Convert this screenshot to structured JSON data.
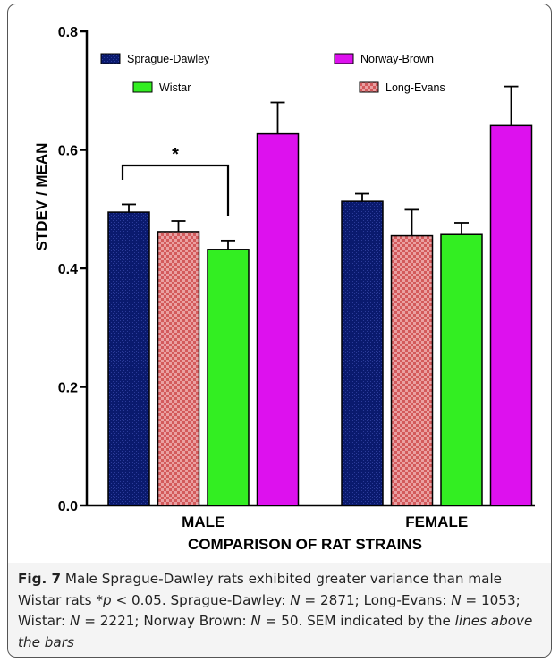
{
  "chart_data": {
    "type": "bar",
    "categories": [
      "MALE",
      "FEMALE"
    ],
    "xlabel": "COMPARISON OF RAT STRAINS",
    "ylabel": "STDEV / MEAN",
    "ylim": [
      0,
      0.8
    ],
    "yticks": [
      "0.0",
      "0.2",
      "0.4",
      "0.6",
      "0.8"
    ],
    "legend_placement": "top",
    "series": [
      {
        "name": "Sprague-Dawley",
        "values": [
          0.495,
          0.513
        ],
        "sem": [
          0.013,
          0.013
        ],
        "color": "#0a1a6e",
        "pattern": "dots-dark"
      },
      {
        "name": "Long-Evans",
        "values": [
          0.462,
          0.455
        ],
        "sem": [
          0.018,
          0.044
        ],
        "color": "#d0585a",
        "pattern": "checker-red"
      },
      {
        "name": "Wistar",
        "values": [
          0.432,
          0.457
        ],
        "sem": [
          0.015,
          0.02
        ],
        "color": "#33ee22",
        "pattern": "solid"
      },
      {
        "name": "Norway-Brown",
        "values": [
          0.627,
          0.641
        ],
        "sem": [
          0.053,
          0.066
        ],
        "color": "#dd11ee",
        "pattern": "solid"
      }
    ],
    "legend_order": [
      "Sprague-Dawley",
      "Norway-Brown",
      "Wistar",
      "Long-Evans"
    ],
    "significance": {
      "label": "*",
      "category": "MALE",
      "between": [
        "Sprague-Dawley",
        "Wistar"
      ]
    }
  },
  "caption": {
    "fig_label": "Fig. 7",
    "text_1": " Male Sprague-Dawley rats exhibited greater variance than male Wistar rats *",
    "p": "p",
    "text_2": " < 0.05. Sprague-Dawley: ",
    "n1_sym": "N",
    "n1": " = 2871; Long-Evans: ",
    "n2_sym": "N",
    "n2": " = 1053; Wistar: ",
    "n3_sym": "N",
    "n3": " = 2221; Norway Brown: ",
    "n4_sym": "N",
    "n4": " = 50. SEM indicated by the ",
    "italic_end": "lines above the bars"
  }
}
